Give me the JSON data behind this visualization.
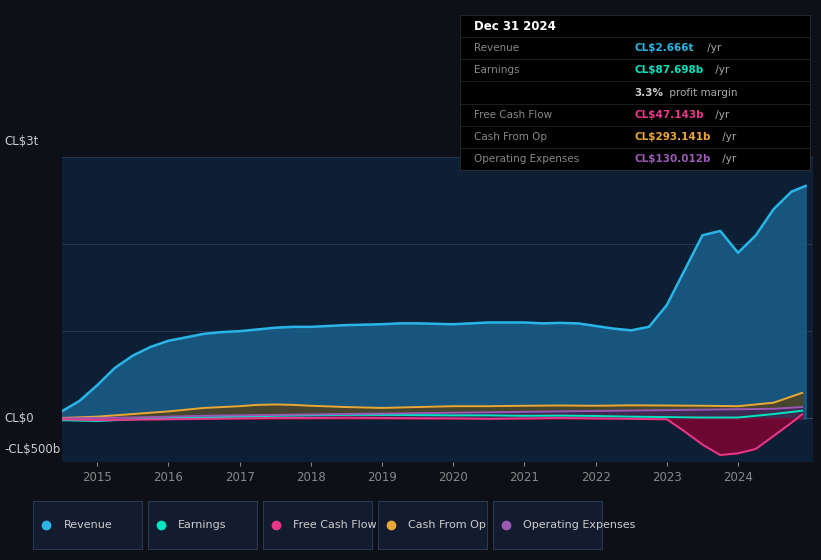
{
  "background_color": "#0d1117",
  "plot_bg_color": "#0d1f35",
  "y_label_top": "CL$3t",
  "y_label_mid": "CL$0",
  "y_label_bot": "-CL$500b",
  "x_ticks": [
    2015,
    2016,
    2017,
    2018,
    2019,
    2020,
    2021,
    2022,
    2023,
    2024
  ],
  "legend": [
    {
      "label": "Revenue",
      "color": "#29b5e8"
    },
    {
      "label": "Earnings",
      "color": "#00e5c0"
    },
    {
      "label": "Free Cash Flow",
      "color": "#e8388a"
    },
    {
      "label": "Cash From Op",
      "color": "#e8a838"
    },
    {
      "label": "Operating Expenses",
      "color": "#9b59b6"
    }
  ],
  "table_rows": [
    {
      "label": "Dec 31 2024",
      "value": null,
      "val_color": null,
      "is_header": true
    },
    {
      "label": "Revenue",
      "value_bold": "CL$2.666t",
      "value_plain": " /yr",
      "val_color": "#29b5e8"
    },
    {
      "label": "Earnings",
      "value_bold": "CL$87.698b",
      "value_plain": " /yr",
      "val_color": "#00e5c0"
    },
    {
      "label": "",
      "value_bold": "3.3%",
      "value_plain": " profit margin",
      "val_color": "#cccccc"
    },
    {
      "label": "Free Cash Flow",
      "value_bold": "CL$47.143b",
      "value_plain": " /yr",
      "val_color": "#e8388a"
    },
    {
      "label": "Cash From Op",
      "value_bold": "CL$293.141b",
      "value_plain": " /yr",
      "val_color": "#e8a838"
    },
    {
      "label": "Operating Expenses",
      "value_bold": "CL$130.012b",
      "value_plain": " /yr",
      "val_color": "#9b59b6"
    }
  ],
  "series": {
    "Revenue": {
      "x": [
        2014.5,
        2014.75,
        2015.0,
        2015.25,
        2015.5,
        2015.75,
        2016.0,
        2016.25,
        2016.5,
        2016.75,
        2017.0,
        2017.25,
        2017.5,
        2017.75,
        2018.0,
        2018.25,
        2018.5,
        2018.75,
        2019.0,
        2019.25,
        2019.5,
        2019.75,
        2020.0,
        2020.25,
        2020.5,
        2020.75,
        2021.0,
        2021.25,
        2021.5,
        2021.75,
        2022.0,
        2022.25,
        2022.5,
        2022.75,
        2023.0,
        2023.25,
        2023.5,
        2023.75,
        2024.0,
        2024.25,
        2024.5,
        2024.75,
        2024.95
      ],
      "y": [
        80,
        200,
        380,
        580,
        720,
        820,
        890,
        930,
        970,
        990,
        1000,
        1020,
        1040,
        1050,
        1050,
        1060,
        1070,
        1075,
        1080,
        1090,
        1090,
        1085,
        1080,
        1090,
        1100,
        1100,
        1100,
        1090,
        1095,
        1090,
        1060,
        1030,
        1010,
        1050,
        1300,
        1700,
        2100,
        2150,
        1900,
        2100,
        2400,
        2600,
        2666
      ]
    },
    "Earnings": {
      "x": [
        2014.5,
        2015.0,
        2015.5,
        2016.0,
        2016.5,
        2017.0,
        2017.5,
        2018.0,
        2018.5,
        2019.0,
        2019.5,
        2020.0,
        2020.5,
        2021.0,
        2021.5,
        2022.0,
        2022.5,
        2023.0,
        2023.5,
        2024.0,
        2024.5,
        2024.9
      ],
      "y": [
        -20,
        -30,
        -10,
        5,
        10,
        20,
        30,
        35,
        40,
        40,
        38,
        35,
        35,
        30,
        32,
        28,
        20,
        15,
        10,
        10,
        50,
        88
      ]
    },
    "Free Cash Flow": {
      "x": [
        2014.5,
        2015.0,
        2015.5,
        2016.0,
        2016.5,
        2017.0,
        2017.5,
        2018.0,
        2018.5,
        2019.0,
        2019.5,
        2020.0,
        2020.5,
        2021.0,
        2021.5,
        2022.0,
        2022.5,
        2023.0,
        2023.25,
        2023.5,
        2023.75,
        2024.0,
        2024.25,
        2024.5,
        2024.75,
        2024.9
      ],
      "y": [
        -10,
        -20,
        -15,
        -10,
        -5,
        0,
        5,
        5,
        8,
        5,
        2,
        0,
        -5,
        0,
        5,
        0,
        -5,
        -10,
        -150,
        -300,
        -420,
        -400,
        -350,
        -200,
        -50,
        47
      ]
    },
    "Cash From Op": {
      "x": [
        2014.5,
        2015.0,
        2015.5,
        2016.0,
        2016.5,
        2017.0,
        2017.25,
        2017.5,
        2017.75,
        2018.0,
        2018.5,
        2019.0,
        2019.5,
        2020.0,
        2020.5,
        2021.0,
        2021.5,
        2022.0,
        2022.5,
        2023.0,
        2023.5,
        2024.0,
        2024.5,
        2024.9
      ],
      "y": [
        5,
        20,
        50,
        80,
        120,
        140,
        155,
        160,
        155,
        145,
        130,
        120,
        130,
        140,
        140,
        145,
        148,
        145,
        150,
        148,
        145,
        140,
        180,
        293
      ]
    },
    "Operating Expenses": {
      "x": [
        2014.5,
        2015.0,
        2015.5,
        2016.0,
        2016.5,
        2017.0,
        2017.5,
        2018.0,
        2018.5,
        2019.0,
        2019.5,
        2020.0,
        2020.5,
        2021.0,
        2021.5,
        2022.0,
        2022.5,
        2023.0,
        2023.5,
        2024.0,
        2024.5,
        2024.9
      ],
      "y": [
        0,
        5,
        10,
        20,
        30,
        35,
        40,
        45,
        50,
        55,
        60,
        65,
        70,
        75,
        80,
        85,
        90,
        95,
        100,
        105,
        110,
        130
      ]
    }
  }
}
